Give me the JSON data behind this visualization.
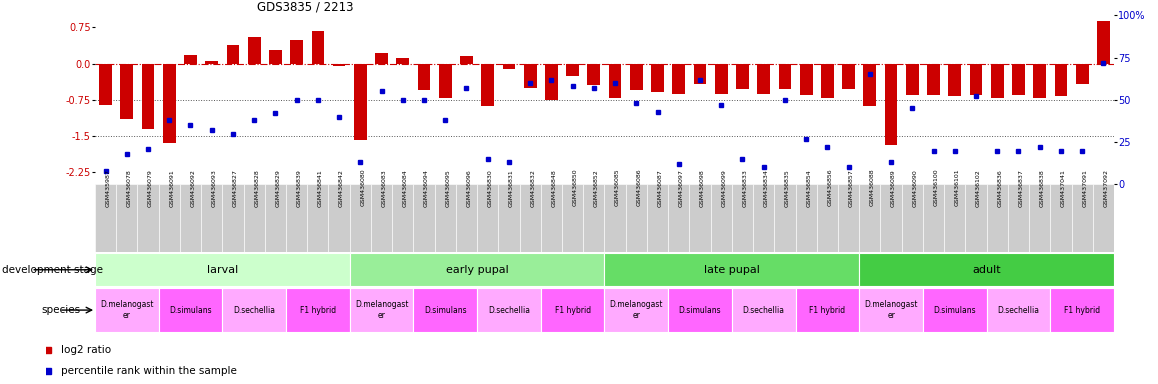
{
  "title": "GDS3835 / 2213",
  "sample_ids": [
    "GSM435987",
    "GSM436078",
    "GSM436079",
    "GSM436091",
    "GSM436092",
    "GSM436093",
    "GSM436827",
    "GSM436828",
    "GSM436829",
    "GSM436839",
    "GSM436841",
    "GSM436842",
    "GSM436080",
    "GSM436083",
    "GSM436084",
    "GSM436094",
    "GSM436095",
    "GSM436096",
    "GSM436830",
    "GSM436831",
    "GSM436832",
    "GSM436848",
    "GSM436850",
    "GSM436852",
    "GSM436085",
    "GSM436086",
    "GSM436087",
    "GSM436097",
    "GSM436098",
    "GSM436099",
    "GSM436833",
    "GSM436834",
    "GSM436835",
    "GSM436854",
    "GSM436856",
    "GSM436857",
    "GSM436088",
    "GSM436089",
    "GSM436090",
    "GSM436100",
    "GSM436101",
    "GSM436102",
    "GSM436836",
    "GSM436837",
    "GSM436838",
    "GSM437041",
    "GSM437091",
    "GSM437092"
  ],
  "log2_ratio": [
    -0.85,
    -1.15,
    -1.35,
    -1.65,
    0.17,
    0.05,
    0.38,
    0.55,
    0.28,
    0.48,
    0.68,
    -0.05,
    -1.58,
    0.22,
    0.12,
    -0.55,
    -0.72,
    0.15,
    -0.88,
    -0.12,
    -0.5,
    -0.75,
    -0.25,
    -0.45,
    -0.72,
    -0.55,
    -0.58,
    -0.62,
    -0.42,
    -0.62,
    -0.52,
    -0.62,
    -0.52,
    -0.65,
    -0.72,
    -0.52,
    -0.88,
    -1.68,
    -0.65,
    -0.65,
    -0.68,
    -0.65,
    -0.72,
    -0.65,
    -0.72,
    -0.68,
    -0.42,
    0.88
  ],
  "percentile": [
    8,
    18,
    21,
    38,
    35,
    32,
    30,
    38,
    42,
    50,
    50,
    40,
    13,
    55,
    50,
    50,
    38,
    57,
    15,
    13,
    60,
    62,
    58,
    57,
    60,
    48,
    43,
    12,
    62,
    47,
    15,
    10,
    50,
    27,
    22,
    10,
    65,
    13,
    45,
    20,
    20,
    52,
    20,
    20,
    22,
    20,
    20,
    72
  ],
  "dev_stage_groups": [
    {
      "label": "larval",
      "start": 0,
      "end": 12,
      "color": "#ccffcc"
    },
    {
      "label": "early pupal",
      "start": 12,
      "end": 24,
      "color": "#99ee99"
    },
    {
      "label": "late pupal",
      "start": 24,
      "end": 36,
      "color": "#66dd66"
    },
    {
      "label": "adult",
      "start": 36,
      "end": 48,
      "color": "#44cc44"
    }
  ],
  "species_groups": [
    {
      "label": "D.melanogast\ner",
      "start": 0,
      "end": 3,
      "color": "#ffaaff"
    },
    {
      "label": "D.simulans",
      "start": 3,
      "end": 6,
      "color": "#ff66ff"
    },
    {
      "label": "D.sechellia",
      "start": 6,
      "end": 9,
      "color": "#ffaaff"
    },
    {
      "label": "F1 hybrid",
      "start": 9,
      "end": 12,
      "color": "#ff66ff"
    },
    {
      "label": "D.melanogast\ner",
      "start": 12,
      "end": 15,
      "color": "#ffaaff"
    },
    {
      "label": "D.simulans",
      "start": 15,
      "end": 18,
      "color": "#ff66ff"
    },
    {
      "label": "D.sechellia",
      "start": 18,
      "end": 21,
      "color": "#ffaaff"
    },
    {
      "label": "F1 hybrid",
      "start": 21,
      "end": 24,
      "color": "#ff66ff"
    },
    {
      "label": "D.melanogast\ner",
      "start": 24,
      "end": 27,
      "color": "#ffaaff"
    },
    {
      "label": "D.simulans",
      "start": 27,
      "end": 30,
      "color": "#ff66ff"
    },
    {
      "label": "D.sechellia",
      "start": 30,
      "end": 33,
      "color": "#ffaaff"
    },
    {
      "label": "F1 hybrid",
      "start": 33,
      "end": 36,
      "color": "#ff66ff"
    },
    {
      "label": "D.melanogast\ner",
      "start": 36,
      "end": 39,
      "color": "#ffaaff"
    },
    {
      "label": "D.simulans",
      "start": 39,
      "end": 42,
      "color": "#ff66ff"
    },
    {
      "label": "D.sechellia",
      "start": 42,
      "end": 45,
      "color": "#ffaaff"
    },
    {
      "label": "F1 hybrid",
      "start": 45,
      "end": 48,
      "color": "#ff66ff"
    }
  ],
  "bar_color": "#cc0000",
  "dot_color": "#0000cc",
  "sample_box_color": "#cccccc",
  "ylim_left": [
    -2.5,
    1.0
  ],
  "ylim_right": [
    0,
    100
  ],
  "yticks_left": [
    0.75,
    0.0,
    -0.75,
    -1.5,
    -2.25
  ],
  "yticks_right": [
    100,
    75,
    50,
    25,
    0
  ],
  "hline_values": [
    -0.75,
    -1.5
  ],
  "bg": "#ffffff"
}
